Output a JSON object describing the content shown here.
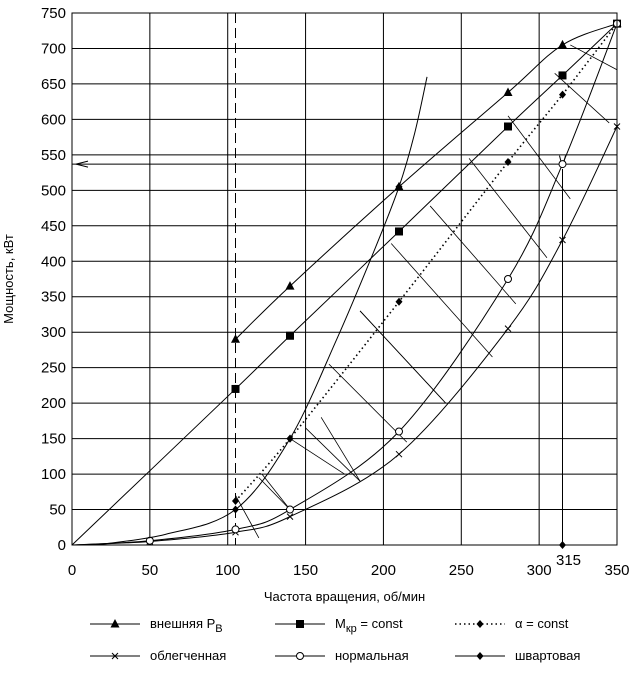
{
  "chart_data": {
    "type": "line",
    "xlabel": "Частота вращения, об/мин",
    "ylabel": "Мощность, кВт",
    "xlim": [
      0,
      350
    ],
    "ylim": [
      0,
      750
    ],
    "x_ticks": [
      "0",
      "50",
      "100",
      "150",
      "200",
      "250",
      "300",
      "350"
    ],
    "y_ticks": [
      "0",
      "50",
      "100",
      "150",
      "200",
      "250",
      "300",
      "350",
      "400",
      "450",
      "500",
      "550",
      "600",
      "650",
      "700",
      "750"
    ],
    "extra_x_tick": {
      "value": 315,
      "label": "315"
    },
    "grid": true,
    "legend_position": "bottom",
    "series": [
      {
        "name": "внешняя P",
        "name_sub": "В",
        "marker": "triangle",
        "line": "solid",
        "x": [
          105,
          140,
          210,
          280,
          315,
          350
        ],
        "y": [
          290,
          365,
          505,
          638,
          705,
          735
        ]
      },
      {
        "name": "M",
        "name_sub": "кр",
        "name_suffix": " = const",
        "marker": "square",
        "line": "solid",
        "x": [
          0,
          105,
          140,
          210,
          280,
          315,
          350
        ],
        "y": [
          0,
          220,
          295,
          442,
          590,
          662,
          735
        ]
      },
      {
        "name": "α = const",
        "marker": "diamond",
        "line": "dotted",
        "x": [
          105,
          140,
          210,
          280,
          315,
          350
        ],
        "y": [
          62,
          150,
          343,
          540,
          635,
          735
        ]
      },
      {
        "name": "облегченная",
        "marker": "x",
        "line": "solid",
        "x": [
          0,
          50,
          105,
          140,
          210,
          280,
          315,
          350
        ],
        "y": [
          0,
          5,
          18,
          40,
          128,
          305,
          430,
          590
        ]
      },
      {
        "name": "нормальная",
        "marker": "circle-open",
        "line": "solid",
        "x": [
          0,
          50,
          105,
          140,
          210,
          280,
          315,
          350
        ],
        "y": [
          0,
          6,
          22,
          50,
          160,
          375,
          537,
          735
        ]
      },
      {
        "name": "швартовая",
        "marker": "diamond",
        "line": "solid",
        "x": [
          15,
          60,
          105,
          140,
          170,
          195,
          210,
          220,
          228
        ],
        "y": [
          0,
          15,
          50,
          150,
          290,
          420,
          505,
          580,
          660
        ]
      }
    ]
  },
  "colors": {
    "line": "#000000",
    "grid": "#000000",
    "background": "#ffffff"
  }
}
